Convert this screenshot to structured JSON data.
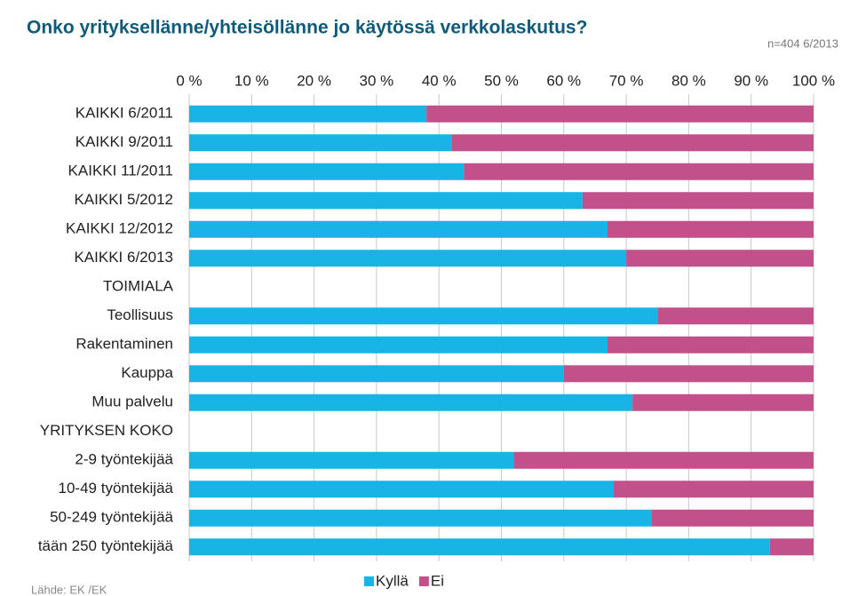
{
  "chart_data": {
    "type": "stacked-barh",
    "title": "Onko yrityksellänne/yhteisöllänne jo käytössä verkkolaskutus?",
    "subtitle": "n=404 6/2013",
    "source": "Lähde: EK /EK",
    "categories": [
      "KAIKKI 6/2011",
      "KAIKKI 9/2011",
      "KAIKKI 11/2011",
      "KAIKKI 5/2012",
      "KAIKKI 12/2012",
      "KAIKKI 6/2013",
      "TOIMIALA",
      "Teollisuus",
      "Rakentaminen",
      "Kauppa",
      "Muu palvelu",
      "YRITYKSEN KOKO",
      "2-9 työntekijää",
      "10-49 työntekijää",
      "50-249 työntekijää",
      "tään 250 työntekijää"
    ],
    "series": [
      {
        "name": "Kyllä",
        "color": "#19b4e6",
        "values": [
          38,
          42,
          44,
          63,
          67,
          70,
          null,
          75,
          67,
          60,
          71,
          null,
          52,
          68,
          74,
          93
        ]
      },
      {
        "name": "Ei",
        "color": "#c2508a",
        "values": [
          62,
          58,
          56,
          37,
          33,
          30,
          null,
          25,
          33,
          40,
          29,
          null,
          48,
          32,
          26,
          7
        ]
      }
    ],
    "xlim": [
      0,
      100
    ],
    "xticks": [
      {
        "value": 0,
        "label": "0 %"
      },
      {
        "value": 10,
        "label": "10 %"
      },
      {
        "value": 20,
        "label": "20 %"
      },
      {
        "value": 30,
        "label": "30 %"
      },
      {
        "value": 40,
        "label": "40 %"
      },
      {
        "value": 50,
        "label": "50 %"
      },
      {
        "value": 60,
        "label": "60 %"
      },
      {
        "value": 70,
        "label": "70 %"
      },
      {
        "value": 80,
        "label": "80 %"
      },
      {
        "value": 90,
        "label": "90 %"
      },
      {
        "value": 100,
        "label": "100 %"
      }
    ],
    "grid": true,
    "legend": "bottom"
  }
}
